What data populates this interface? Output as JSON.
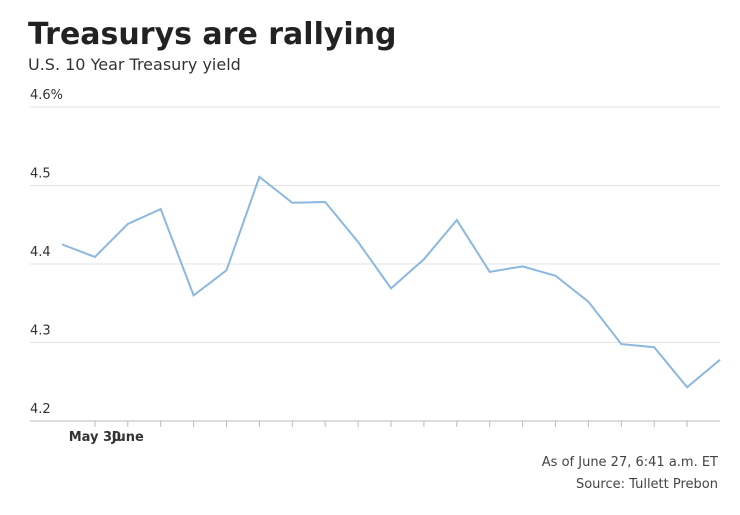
{
  "chart_data": {
    "type": "line",
    "title": "Treasurys are rallying",
    "subtitle": "U.S. 10 Year Treasury yield",
    "categories": [
      null,
      "May 30",
      "June",
      null,
      null,
      null,
      null,
      null,
      null,
      null,
      null,
      null,
      null,
      null,
      null,
      null,
      null,
      null,
      null,
      null,
      null
    ],
    "series": [
      {
        "name": "U.S. 10 Year Treasury yield",
        "color": "#8ab8e0",
        "values": [
          4.425,
          4.409,
          4.451,
          4.47,
          4.36,
          4.392,
          4.511,
          4.478,
          4.479,
          4.428,
          4.369,
          4.406,
          4.456,
          4.39,
          4.397,
          4.385,
          4.352,
          4.298,
          4.294,
          4.243,
          4.278
        ]
      }
    ],
    "ylim": [
      4.2,
      4.6
    ],
    "yticks": [
      4.2,
      4.3,
      4.4,
      4.5,
      {
        "value": 4.6,
        "label": "4.6%"
      }
    ],
    "grid": true,
    "note": "As of June 27, 6:41 a.m. ET",
    "source": "Source: Tullett Prebon"
  }
}
